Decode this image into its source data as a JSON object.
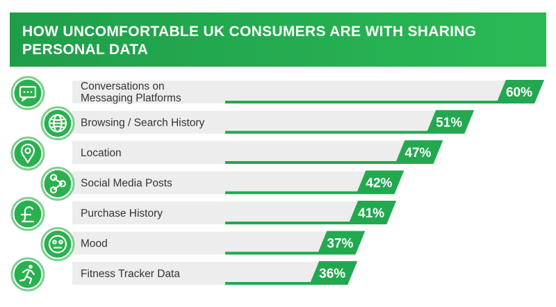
{
  "chart_data": {
    "type": "bar",
    "title": "HOW UNCOMFORTABLE UK CONSUMERS ARE WITH SHARING PERSONAL DATA",
    "categories": [
      [
        "Conversations on",
        "Messaging Platforms"
      ],
      [
        "Browsing / Search History"
      ],
      [
        "Location"
      ],
      [
        "Social Media Posts"
      ],
      [
        "Purchase History"
      ],
      [
        "Mood"
      ],
      [
        "Fitness Tracker Data"
      ]
    ],
    "values": [
      60,
      51,
      47,
      42,
      41,
      37,
      36
    ],
    "value_labels": [
      "60%",
      "51%",
      "47%",
      "42%",
      "41%",
      "37%",
      "36%"
    ],
    "icons": [
      "chat-bubble-icon",
      "globe-icon",
      "location-pin-icon",
      "share-icon",
      "pound-sign-icon",
      "mood-face-icon",
      "runner-icon"
    ],
    "colors": {
      "header": "#22a84e",
      "bar_accent": "#22a84e",
      "bar_fill": "#ededed",
      "icon_ring": "#7ccf8f",
      "text": "#333333",
      "label_text": "#ffffff"
    }
  }
}
